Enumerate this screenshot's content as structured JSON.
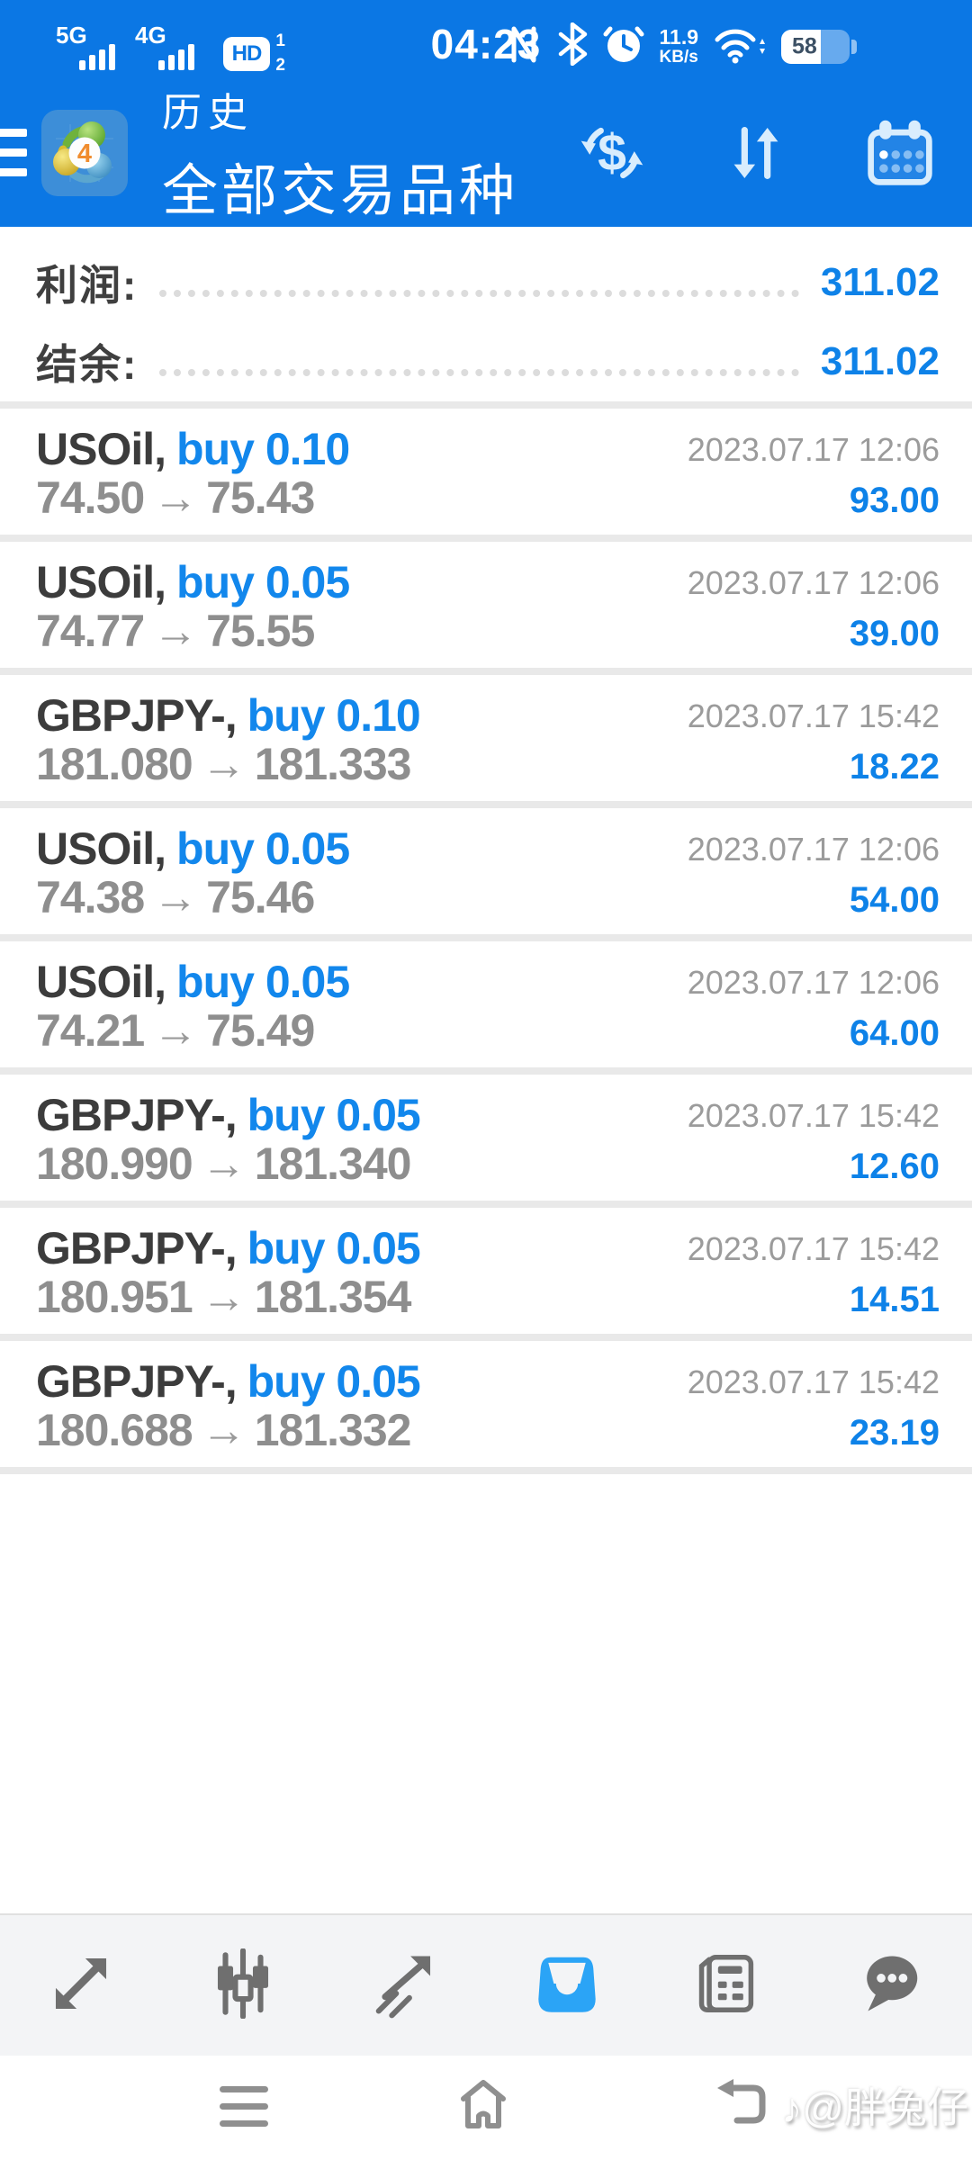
{
  "colors": {
    "app_bar_blue": "#0b77e4",
    "accent_blue": "#0e82e8",
    "buy_blue": "#1287ec",
    "active_tab_blue": "#2ba4f6",
    "row_divider": "#e9e9e9"
  },
  "status_bar": {
    "sim1_tech": "5G",
    "sim2_tech": "4G",
    "volte_label": "HD",
    "volte_sim1": "1",
    "volte_sim2": "2",
    "time": "04:23",
    "net_speed_value": "11.9",
    "net_speed_unit": "KB/s",
    "battery_percent": "58",
    "icons": [
      "signal-bars-icon",
      "nfc-icon",
      "bluetooth-icon",
      "alarm-clock-icon",
      "wifi-icon",
      "battery-icon"
    ]
  },
  "header": {
    "menu_icon": "hamburger-menu-icon",
    "app_icon": "mt4-logo-icon",
    "app_badge": "4",
    "title": "历史",
    "subtitle": "全部交易品种",
    "dollar_glyph": "$",
    "action_icons": [
      "currency-exchange-icon",
      "sort-arrows-icon",
      "calendar-icon"
    ]
  },
  "summary": {
    "profit_label": "利润:",
    "profit_value": "311.02",
    "balance_label": "结余:",
    "balance_value": "311.02"
  },
  "arrow_glyph": "→",
  "trades": [
    {
      "symbol": "USOil,",
      "op": "buy 0.10",
      "open": "74.50",
      "close": "75.43",
      "time": "2023.07.17 12:06",
      "profit": "93.00"
    },
    {
      "symbol": "USOil,",
      "op": "buy 0.05",
      "open": "74.77",
      "close": "75.55",
      "time": "2023.07.17 12:06",
      "profit": "39.00"
    },
    {
      "symbol": "GBPJPY-,",
      "op": "buy 0.10",
      "open": "181.080",
      "close": "181.333",
      "time": "2023.07.17 15:42",
      "profit": "18.22"
    },
    {
      "symbol": "USOil,",
      "op": "buy 0.05",
      "open": "74.38",
      "close": "75.46",
      "time": "2023.07.17 12:06",
      "profit": "54.00"
    },
    {
      "symbol": "USOil,",
      "op": "buy 0.05",
      "open": "74.21",
      "close": "75.49",
      "time": "2023.07.17 12:06",
      "profit": "64.00"
    },
    {
      "symbol": "GBPJPY-,",
      "op": "buy 0.05",
      "open": "180.990",
      "close": "181.340",
      "time": "2023.07.17 15:42",
      "profit": "12.60"
    },
    {
      "symbol": "GBPJPY-,",
      "op": "buy 0.05",
      "open": "180.951",
      "close": "181.354",
      "time": "2023.07.17 15:42",
      "profit": "14.51"
    },
    {
      "symbol": "GBPJPY-,",
      "op": "buy 0.05",
      "open": "180.688",
      "close": "181.332",
      "time": "2023.07.17 15:42",
      "profit": "23.19"
    }
  ],
  "toolbar": {
    "items": [
      {
        "name": "quotes",
        "icon": "trend-arrows-icon",
        "active": false
      },
      {
        "name": "charts",
        "icon": "candlestick-chart-icon",
        "active": false
      },
      {
        "name": "trade",
        "icon": "line-chart-arrow-icon",
        "active": false
      },
      {
        "name": "history",
        "icon": "history-tray-icon",
        "active": true
      },
      {
        "name": "news",
        "icon": "newspaper-icon",
        "active": false
      },
      {
        "name": "messages",
        "icon": "chat-bubble-icon",
        "active": false
      }
    ]
  },
  "navbar": {
    "icons": [
      "recents-icon",
      "home-icon",
      "back-icon"
    ],
    "watermark": "♪@胖兔仔"
  }
}
